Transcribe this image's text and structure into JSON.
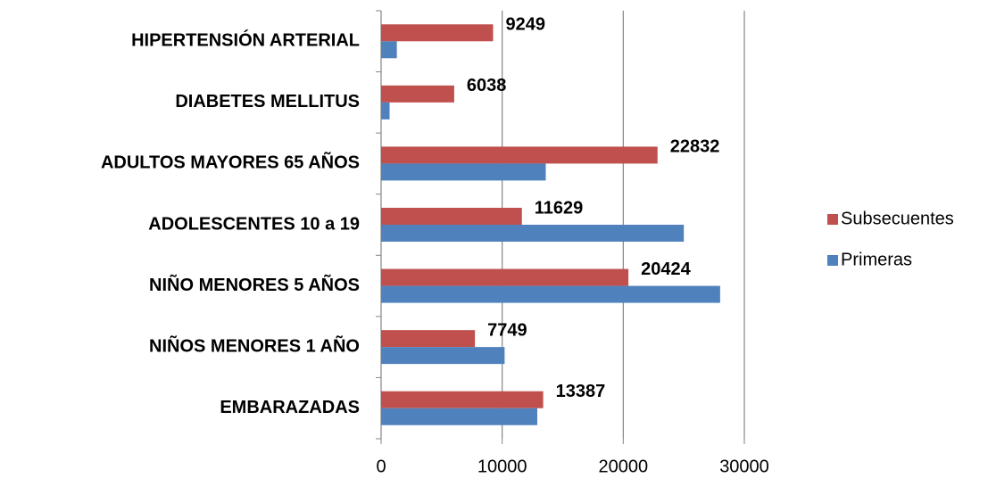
{
  "chart_data": {
    "type": "hbar",
    "categories": [
      "HIPERTENSIÓN ARTERIAL",
      "DIABETES MELLITUS",
      "ADULTOS MAYORES 65 AÑOS",
      "ADOLESCENTES 10 a 19",
      "NIÑO MENORES 5 AÑOS",
      "NIÑOS MENORES 1 AÑO",
      "EMBARAZADAS"
    ],
    "series": [
      {
        "name": "Subsecuentes",
        "color": "#c0504d",
        "values": [
          9249,
          6038,
          22832,
          11629,
          20424,
          7749,
          13387
        ],
        "data_labels": true
      },
      {
        "name": "Primeras",
        "color": "#4f81bd",
        "values": [
          1300,
          700,
          13600,
          25000,
          28000,
          10200,
          12900
        ],
        "data_labels": false
      }
    ],
    "xlim": [
      0,
      30000
    ],
    "xticks": [
      0,
      10000,
      20000,
      30000
    ],
    "grid": true,
    "legend": "right"
  }
}
